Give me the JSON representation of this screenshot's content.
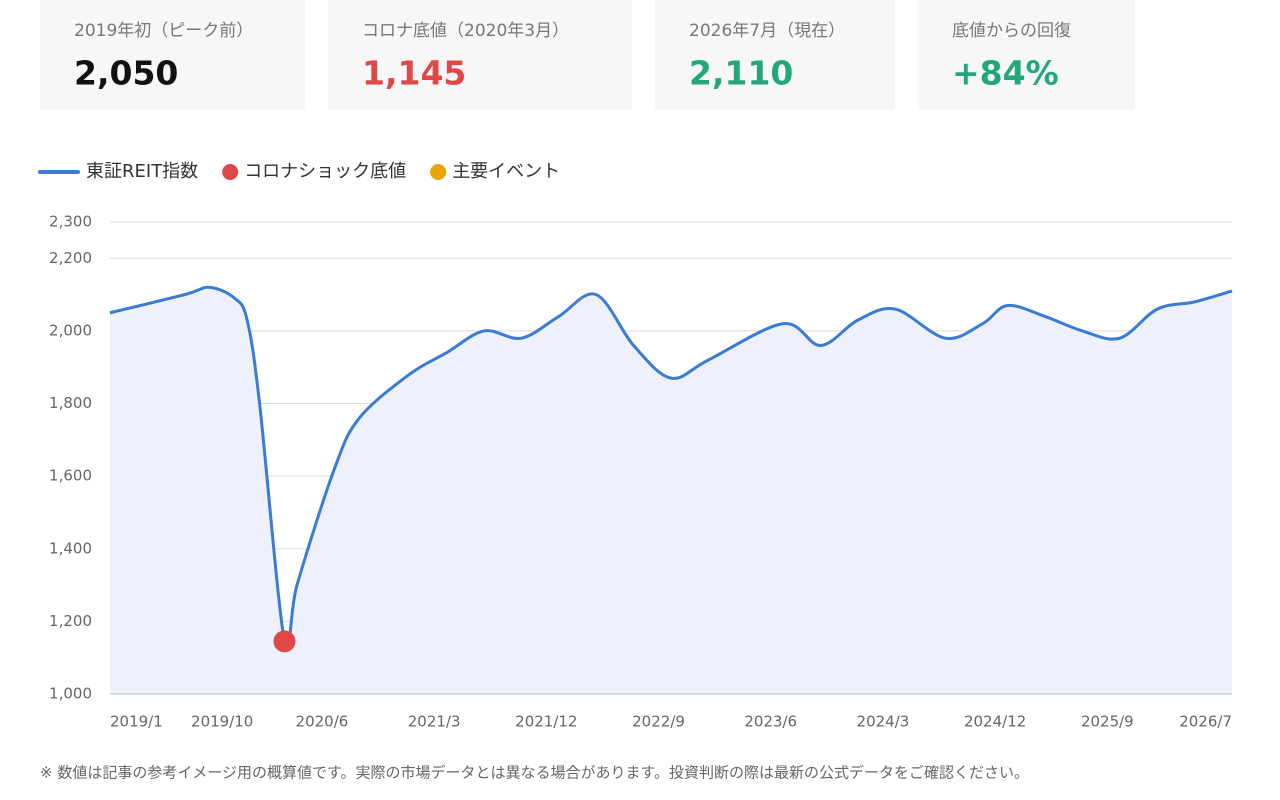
{
  "cards": [
    {
      "label": "2019年初（ピーク前）",
      "value": "2,050",
      "color": "#111111"
    },
    {
      "label": "コロナ底値（2020年3月）",
      "value": "1,145",
      "color": "#e04848"
    },
    {
      "label": "2026年7月（現在）",
      "value": "2,110",
      "color": "#22a77a"
    },
    {
      "label": "底値からの回復",
      "value": "+84%",
      "color": "#22a77a"
    }
  ],
  "chart_data": {
    "type": "line",
    "x": [
      "2019/1",
      "2019/7",
      "2019/9",
      "2019/11",
      "2019/12",
      "2020/1",
      "2020/3",
      "2020/4",
      "2020/7",
      "2020/9",
      "2021/1",
      "2021/4",
      "2021/7",
      "2021/10",
      "2022/1",
      "2022/4",
      "2022/7",
      "2022/10",
      "2023/1",
      "2023/7",
      "2023/10",
      "2024/1",
      "2024/4",
      "2024/8",
      "2024/11",
      "2025/1",
      "2025/4",
      "2025/7",
      "2025/10",
      "2026/1",
      "2026/4",
      "2026/7"
    ],
    "series": [
      {
        "name": "東証REIT指数",
        "color": "#3a7bd5",
        "values": [
          2050,
          2100,
          2120,
          2090,
          2030,
          1800,
          1145,
          1300,
          1620,
          1760,
          1880,
          1940,
          2000,
          1980,
          2040,
          2100,
          1960,
          1870,
          1920,
          2020,
          1960,
          2030,
          2060,
          1980,
          2020,
          2070,
          2040,
          2000,
          1980,
          2060,
          2080,
          2110
        ]
      },
      {
        "name": "コロナショック底値",
        "color": "#e04848",
        "x": [
          "2020/3"
        ],
        "values": [
          1145
        ]
      },
      {
        "name": "主要イベント",
        "color": "#e8a400",
        "x": [],
        "values": []
      }
    ],
    "xlim": [
      "2019/1",
      "2026/7"
    ],
    "xticks": [
      "2019/1",
      "2019/10",
      "2020/6",
      "2021/3",
      "2021/12",
      "2022/9",
      "2023/6",
      "2024/3",
      "2024/12",
      "2025/9",
      "2026/7"
    ],
    "ylim": [
      1000,
      2300
    ],
    "yticks": [
      {
        "value": 1000,
        "label": "1,000"
      },
      {
        "value": 1200,
        "label": "1,200"
      },
      {
        "value": 1400,
        "label": "1,400"
      },
      {
        "value": 1600,
        "label": "1,600"
      },
      {
        "value": 1800,
        "label": "1,800"
      },
      {
        "value": 2000,
        "label": "2,000"
      },
      {
        "value": 2200,
        "label": "2,200"
      },
      {
        "value": 2300,
        "label": "2,300"
      }
    ],
    "grid": true,
    "area_color": "#eef1fb"
  },
  "footnote": "※ 数値は記事の参考イメージ用の概算値です。実際の市場データとは異なる場合があります。投資判断の際は最新の公式データをご確認ください。"
}
